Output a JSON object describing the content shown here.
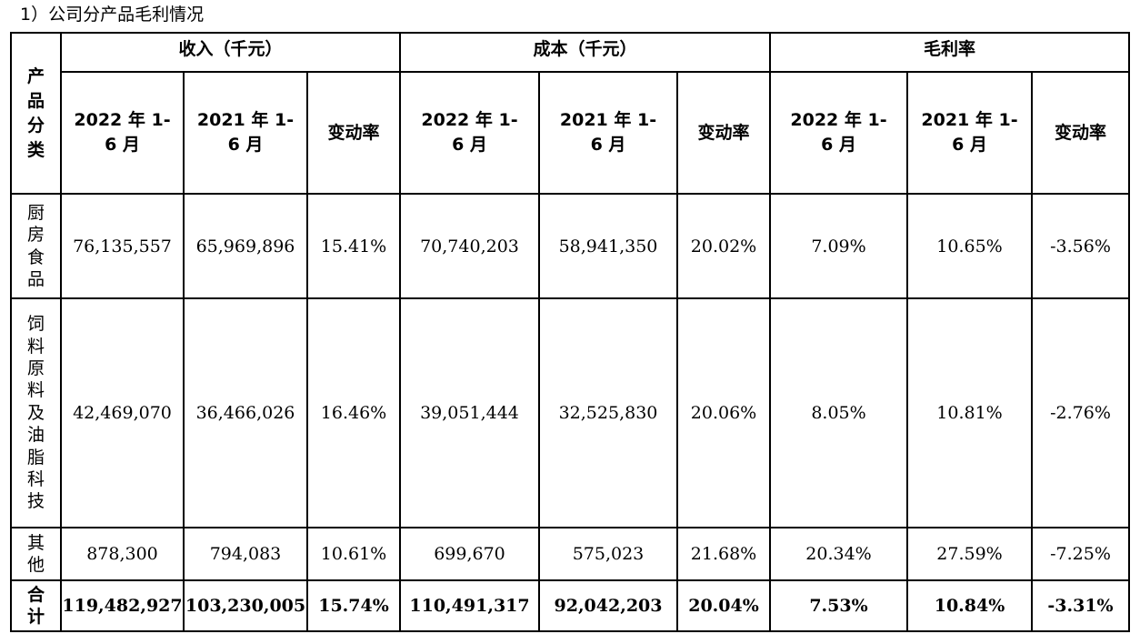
{
  "caption": "1）公司分产品毛利情况",
  "header": {
    "category": "产品分类",
    "groups": [
      "收入（千元）",
      "成本（千元）",
      "毛利率"
    ],
    "sub": [
      "2022 年 1-6 月",
      "2021 年 1-6 月",
      "变动率"
    ]
  },
  "rows": [
    {
      "category": "厨房食品",
      "revenue_2022": "76,135,557",
      "revenue_2021": "65,969,896",
      "revenue_change": "15.41%",
      "cost_2022": "70,740,203",
      "cost_2021": "58,941,350",
      "cost_change": "20.02%",
      "margin_2022": "7.09%",
      "margin_2021": "10.65%",
      "margin_change": "-3.56%"
    },
    {
      "category": "饲料原料及油脂科技",
      "revenue_2022": "42,469,070",
      "revenue_2021": "36,466,026",
      "revenue_change": "16.46%",
      "cost_2022": "39,051,444",
      "cost_2021": "32,525,830",
      "cost_change": "20.06%",
      "margin_2022": "8.05%",
      "margin_2021": "10.81%",
      "margin_change": "-2.76%"
    },
    {
      "category": "其他",
      "revenue_2022": "878,300",
      "revenue_2021": "794,083",
      "revenue_change": "10.61%",
      "cost_2022": "699,670",
      "cost_2021": "575,023",
      "cost_change": "21.68%",
      "margin_2022": "20.34%",
      "margin_2021": "27.59%",
      "margin_change": "-7.25%"
    }
  ],
  "total": {
    "category": "合计",
    "revenue_2022": "119,482,927",
    "revenue_2021": "103,230,005",
    "revenue_change": "15.74%",
    "cost_2022": "110,491,317",
    "cost_2021": "92,042,203",
    "cost_change": "20.04%",
    "margin_2022": "7.53%",
    "margin_2021": "10.84%",
    "margin_change": "-3.31%"
  }
}
